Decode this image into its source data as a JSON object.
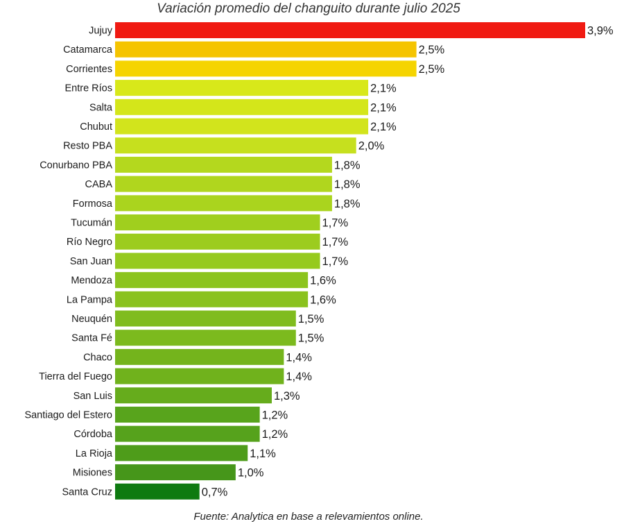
{
  "chart_data": {
    "type": "bar",
    "orientation": "horizontal",
    "title": "Variación promedio del changuito durante julio 2025",
    "source": "Fuente: Analytica en base a relevamientos online.",
    "xlabel": "",
    "ylabel": "",
    "xlim": [
      0,
      3.9
    ],
    "grid": false,
    "legend": "none",
    "categories": [
      "Jujuy",
      "Catamarca",
      "Corrientes",
      "Entre Ríos",
      "Salta",
      "Chubut",
      "Resto PBA",
      "Conurbano PBA",
      "CABA",
      "Formosa",
      "Tucumán",
      "Río Negro",
      "San Juan",
      "Mendoza",
      "La Pampa",
      "Neuquén",
      "Santa Fé",
      "Chaco",
      "Tierra del Fuego",
      "San Luis",
      "Santiago del Estero",
      "Córdoba",
      "La Rioja",
      "Misiones",
      "Santa Cruz"
    ],
    "values": [
      3.9,
      2.5,
      2.5,
      2.1,
      2.1,
      2.1,
      2.0,
      1.8,
      1.8,
      1.8,
      1.7,
      1.7,
      1.7,
      1.6,
      1.6,
      1.5,
      1.5,
      1.4,
      1.4,
      1.3,
      1.2,
      1.2,
      1.1,
      1.0,
      0.7
    ],
    "value_labels": [
      "3,9%",
      "2,5%",
      "2,5%",
      "2,1%",
      "2,1%",
      "2,1%",
      "2,0%",
      "1,8%",
      "1,8%",
      "1,8%",
      "1,7%",
      "1,7%",
      "1,7%",
      "1,6%",
      "1,6%",
      "1,5%",
      "1,5%",
      "1,4%",
      "1,4%",
      "1,3%",
      "1,2%",
      "1,2%",
      "1,1%",
      "1,0%",
      "0,7%"
    ],
    "colors": [
      "#f01a12",
      "#f5c400",
      "#f5d400",
      "#d8e81a",
      "#d4e61a",
      "#d2e41c",
      "#c6e01e",
      "#b4d81e",
      "#b0d61e",
      "#aad41e",
      "#a0cf1e",
      "#9ccc1e",
      "#96ca1e",
      "#8cc41e",
      "#8ac21e",
      "#80bc1e",
      "#7cba1e",
      "#74b41c",
      "#70b21c",
      "#66ac1c",
      "#58a41c",
      "#56a21c",
      "#4e9c1a",
      "#46961a",
      "#0e7a10"
    ]
  }
}
